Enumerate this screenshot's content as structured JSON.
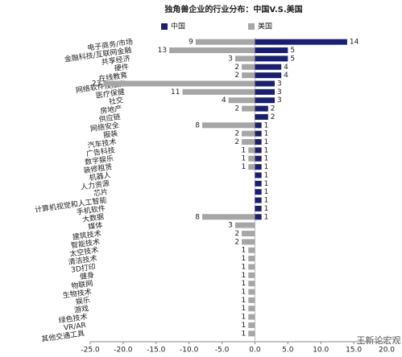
{
  "chart_data": {
    "type": "bar",
    "orientation": "horizontal",
    "title": "独角兽企业的行业分布：中国V.S.美国",
    "watermark": "王新论宏观",
    "categories": [
      "电子商务/市场",
      "金融科技/互联网金融",
      "共享经济",
      "硬件",
      "在线教育",
      "网络软件及服务",
      "医疗保健",
      "社交",
      "房地产",
      "供应链",
      "网络安全",
      "服装",
      "汽车技术",
      "广告科技",
      "数字娱乐",
      "装修租赁",
      "机器人",
      "人力资源",
      "芯片",
      "计算机视觉和人工智能",
      "手机软件",
      "大数据",
      "媒体",
      "建筑技术",
      "智能技术",
      "太空技术",
      "清洁技术",
      "3D打印",
      "健身",
      "物联网",
      "生物技术",
      "娱乐",
      "游戏",
      "绿色技术",
      "VR/AR",
      "其他交通工具"
    ],
    "series": [
      {
        "name": "中国",
        "color": "#1a1f6e",
        "values": [
          14,
          5,
          5,
          4,
          4,
          3,
          3,
          3,
          2,
          2,
          1,
          1,
          1,
          1,
          1,
          1,
          1,
          1,
          1,
          1,
          1,
          1,
          null,
          null,
          null,
          null,
          null,
          null,
          null,
          null,
          null,
          null,
          null,
          null,
          null,
          null
        ]
      },
      {
        "name": "美国",
        "color": "#a6a6a6",
        "values": [
          -9,
          -13,
          -3,
          -2,
          -2,
          -23,
          -11,
          -4,
          -2,
          null,
          -8,
          -2,
          -2,
          -1,
          -1,
          -1,
          null,
          null,
          null,
          null,
          null,
          -8,
          -3,
          -2,
          -2,
          -1,
          -1,
          -1,
          -1,
          -1,
          -1,
          -1,
          -1,
          -1,
          -1,
          -1
        ],
        "value_labels": [
          "9",
          "13",
          "3",
          "2",
          "2",
          "23",
          "11",
          "4",
          "2",
          null,
          "8",
          "2",
          "2",
          "1",
          "1",
          "1",
          null,
          null,
          null,
          null,
          null,
          "8",
          "3",
          "2",
          "2",
          "1",
          "1",
          "1",
          "1",
          "1",
          "1",
          "1",
          "1",
          "1",
          "1",
          "1"
        ]
      }
    ],
    "xlim": [
      -25,
      20
    ],
    "xticks": [
      {
        "value": -25,
        "label": "-25.0"
      },
      {
        "value": -20,
        "label": "-20.0"
      },
      {
        "value": -15,
        "label": "-15.0"
      },
      {
        "value": -10,
        "label": "-10.0"
      },
      {
        "value": -5,
        "label": "-5.0"
      },
      {
        "value": 0,
        "label": "0.0"
      },
      {
        "value": 5,
        "label": "5.0"
      },
      {
        "value": 10,
        "label": "10.0"
      },
      {
        "value": 15,
        "label": "15.0"
      },
      {
        "value": 20,
        "label": "20.0"
      }
    ],
    "legend": "top"
  }
}
